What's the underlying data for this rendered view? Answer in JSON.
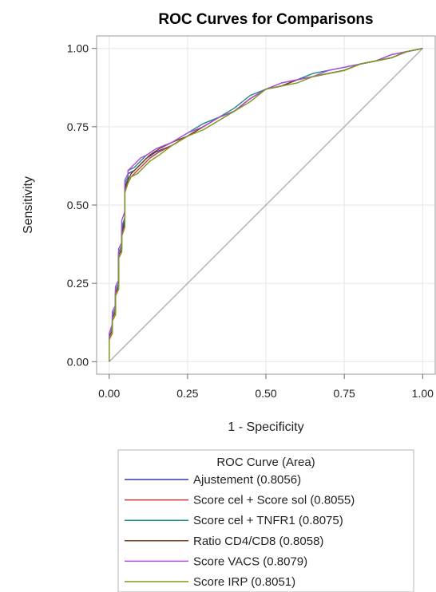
{
  "chart_data": {
    "type": "line",
    "title": "ROC Curves for Comparisons",
    "xlabel": "1 - Specificity",
    "ylabel": "Sensitivity",
    "xlim": [
      -0.04,
      1.04
    ],
    "ylim": [
      -0.04,
      1.04
    ],
    "x_ticks": [
      "0.00",
      "0.25",
      "0.50",
      "0.75",
      "1.00"
    ],
    "y_ticks": [
      "0.00",
      "0.25",
      "0.50",
      "0.75",
      "1.00"
    ],
    "grid": true,
    "legend_title": "ROC Curve (Area)",
    "legend_position": "bottom",
    "reference_line": {
      "x": [
        0,
        1
      ],
      "y": [
        0,
        1
      ],
      "color": "#a8a8a8"
    },
    "series": [
      {
        "name": "Ajustement  (0.8056)",
        "color": "#2f3ea8",
        "x": [
          0,
          0,
          0.01,
          0.01,
          0.02,
          0.02,
          0.03,
          0.03,
          0.04,
          0.04,
          0.05,
          0.05,
          0.06,
          0.06,
          0.08,
          0.1,
          0.12,
          0.15,
          0.2,
          0.25,
          0.3,
          0.35,
          0.4,
          0.45,
          0.5,
          0.55,
          0.6,
          0.65,
          0.7,
          0.75,
          0.8,
          0.85,
          0.9,
          0.95,
          1.0
        ],
        "y": [
          0,
          0.08,
          0.1,
          0.14,
          0.16,
          0.22,
          0.24,
          0.34,
          0.36,
          0.42,
          0.45,
          0.56,
          0.58,
          0.6,
          0.61,
          0.63,
          0.65,
          0.67,
          0.69,
          0.72,
          0.75,
          0.78,
          0.8,
          0.84,
          0.87,
          0.88,
          0.9,
          0.91,
          0.92,
          0.93,
          0.95,
          0.96,
          0.97,
          0.99,
          1.0
        ]
      },
      {
        "name": "Score cel + Score sol  (0.8055)",
        "color": "#c43a3a",
        "x": [
          0,
          0,
          0.01,
          0.01,
          0.02,
          0.02,
          0.03,
          0.03,
          0.04,
          0.04,
          0.05,
          0.05,
          0.06,
          0.07,
          0.09,
          0.11,
          0.13,
          0.16,
          0.2,
          0.25,
          0.3,
          0.35,
          0.4,
          0.45,
          0.5,
          0.55,
          0.6,
          0.65,
          0.7,
          0.75,
          0.8,
          0.85,
          0.9,
          0.95,
          1.0
        ],
        "y": [
          0,
          0.07,
          0.09,
          0.13,
          0.15,
          0.21,
          0.23,
          0.33,
          0.35,
          0.4,
          0.43,
          0.54,
          0.57,
          0.59,
          0.61,
          0.63,
          0.65,
          0.67,
          0.69,
          0.72,
          0.75,
          0.78,
          0.8,
          0.84,
          0.87,
          0.88,
          0.9,
          0.91,
          0.92,
          0.93,
          0.95,
          0.96,
          0.97,
          0.99,
          1.0
        ]
      },
      {
        "name": "Score cel + TNFR1  (0.8075)",
        "color": "#1f8a8a",
        "x": [
          0,
          0,
          0.01,
          0.01,
          0.02,
          0.02,
          0.03,
          0.03,
          0.04,
          0.04,
          0.05,
          0.05,
          0.06,
          0.06,
          0.08,
          0.1,
          0.12,
          0.15,
          0.2,
          0.25,
          0.3,
          0.35,
          0.4,
          0.45,
          0.5,
          0.55,
          0.6,
          0.65,
          0.7,
          0.75,
          0.8,
          0.85,
          0.9,
          0.95,
          1.0
        ],
        "y": [
          0,
          0.09,
          0.11,
          0.15,
          0.17,
          0.23,
          0.25,
          0.35,
          0.37,
          0.43,
          0.46,
          0.57,
          0.59,
          0.61,
          0.62,
          0.64,
          0.66,
          0.68,
          0.7,
          0.73,
          0.76,
          0.78,
          0.81,
          0.85,
          0.87,
          0.89,
          0.9,
          0.92,
          0.93,
          0.94,
          0.95,
          0.96,
          0.98,
          0.99,
          1.0
        ]
      },
      {
        "name": "Ratio CD4/CD8  (0.8058)",
        "color": "#7a3f1e",
        "x": [
          0,
          0,
          0.01,
          0.01,
          0.02,
          0.02,
          0.03,
          0.03,
          0.04,
          0.04,
          0.05,
          0.05,
          0.06,
          0.07,
          0.09,
          0.11,
          0.13,
          0.16,
          0.2,
          0.25,
          0.3,
          0.35,
          0.4,
          0.45,
          0.5,
          0.55,
          0.6,
          0.65,
          0.7,
          0.75,
          0.8,
          0.85,
          0.9,
          0.95,
          1.0
        ],
        "y": [
          0,
          0.08,
          0.1,
          0.14,
          0.16,
          0.22,
          0.24,
          0.34,
          0.36,
          0.41,
          0.44,
          0.55,
          0.58,
          0.6,
          0.62,
          0.64,
          0.66,
          0.68,
          0.7,
          0.72,
          0.75,
          0.78,
          0.8,
          0.84,
          0.87,
          0.88,
          0.9,
          0.91,
          0.92,
          0.93,
          0.95,
          0.96,
          0.97,
          0.99,
          1.0
        ]
      },
      {
        "name": "Score VACS  (0.8079)",
        "color": "#b44be0",
        "x": [
          0,
          0,
          0.01,
          0.01,
          0.02,
          0.02,
          0.03,
          0.03,
          0.04,
          0.04,
          0.05,
          0.05,
          0.06,
          0.06,
          0.08,
          0.1,
          0.12,
          0.15,
          0.2,
          0.25,
          0.3,
          0.35,
          0.4,
          0.45,
          0.5,
          0.55,
          0.6,
          0.65,
          0.7,
          0.75,
          0.8,
          0.85,
          0.9,
          0.95,
          1.0
        ],
        "y": [
          0,
          0.09,
          0.12,
          0.16,
          0.18,
          0.24,
          0.26,
          0.36,
          0.38,
          0.45,
          0.48,
          0.58,
          0.6,
          0.61,
          0.63,
          0.65,
          0.66,
          0.68,
          0.7,
          0.73,
          0.75,
          0.78,
          0.8,
          0.84,
          0.87,
          0.89,
          0.9,
          0.91,
          0.93,
          0.94,
          0.95,
          0.96,
          0.98,
          0.99,
          1.0
        ]
      },
      {
        "name": "Score IRP  (0.8051)",
        "color": "#7a9a1a",
        "x": [
          0,
          0,
          0.01,
          0.01,
          0.02,
          0.02,
          0.03,
          0.03,
          0.04,
          0.04,
          0.05,
          0.05,
          0.06,
          0.07,
          0.09,
          0.11,
          0.13,
          0.16,
          0.2,
          0.25,
          0.3,
          0.35,
          0.4,
          0.45,
          0.5,
          0.55,
          0.6,
          0.65,
          0.7,
          0.75,
          0.8,
          0.85,
          0.9,
          0.95,
          1.0
        ],
        "y": [
          0,
          0.07,
          0.09,
          0.13,
          0.15,
          0.21,
          0.23,
          0.33,
          0.35,
          0.4,
          0.43,
          0.54,
          0.57,
          0.59,
          0.6,
          0.62,
          0.64,
          0.66,
          0.69,
          0.72,
          0.74,
          0.77,
          0.8,
          0.83,
          0.87,
          0.88,
          0.89,
          0.91,
          0.92,
          0.93,
          0.95,
          0.96,
          0.97,
          0.99,
          1.0
        ]
      }
    ]
  }
}
